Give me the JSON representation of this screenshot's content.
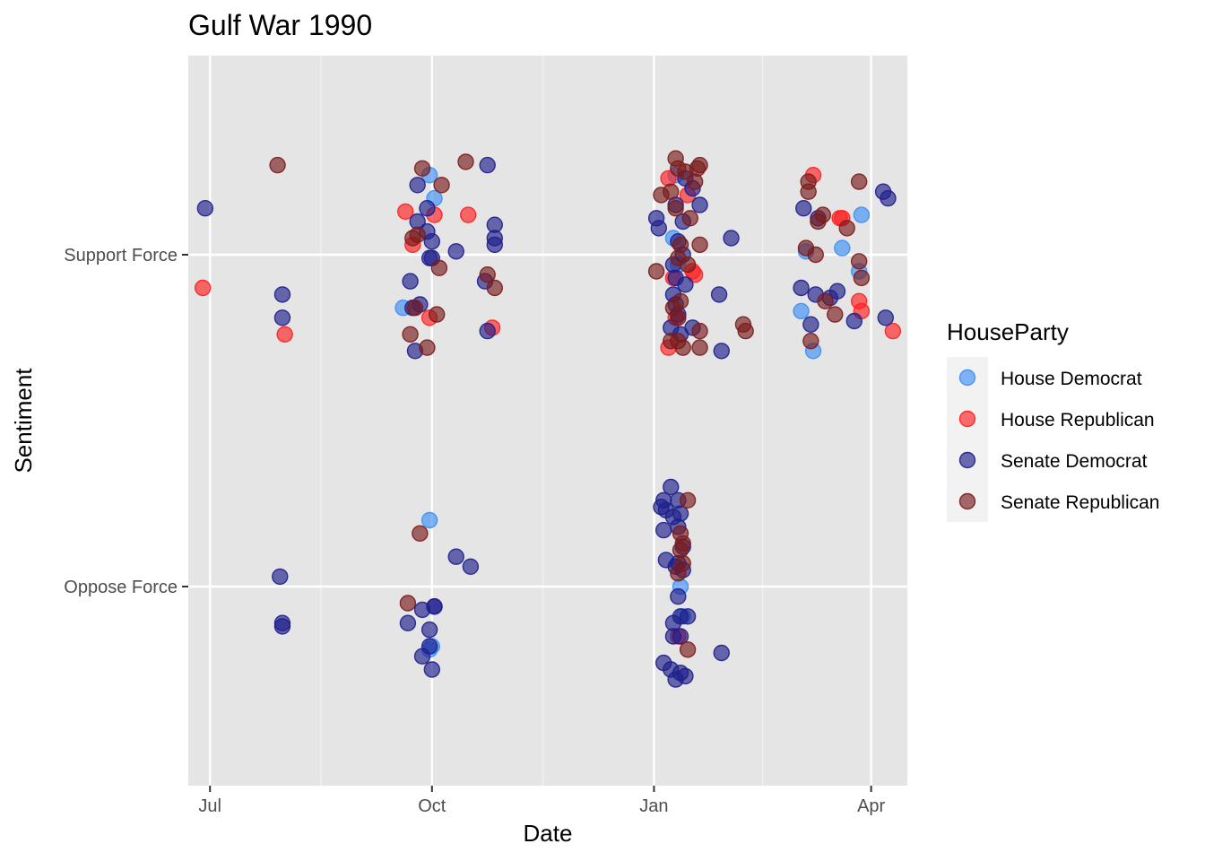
{
  "chart_data": {
    "type": "scatter",
    "title": "Gulf War 1990",
    "xlabel": "Date",
    "ylabel": "Sentiment",
    "x_type": "date",
    "xlim": [
      "1990-06-22",
      "1991-04-16"
    ],
    "x_ticks": [
      {
        "date": "1990-07-01",
        "label": "Jul"
      },
      {
        "date": "1990-10-01",
        "label": "Oct"
      },
      {
        "date": "1991-01-01",
        "label": "Jan"
      },
      {
        "date": "1991-04-01",
        "label": "Apr"
      }
    ],
    "x_minor_ticks": [
      "1990-08-16",
      "1990-11-16",
      "1991-02-15"
    ],
    "y_categories": [
      "Oppose Force",
      "Support Force"
    ],
    "ylim": [
      -0.6,
      1.6
    ],
    "grid": true,
    "legend_position": "right",
    "legend": {
      "title": "HouseParty",
      "entries": [
        {
          "label": "House Democrat",
          "color": "#3E8FF5"
        },
        {
          "label": "House Republican",
          "color": "#FF2020"
        },
        {
          "label": "Senate Democrat",
          "color": "#1E1F8C"
        },
        {
          "label": "Senate Republican",
          "color": "#7A1C1C"
        }
      ]
    },
    "series": [
      {
        "name": "House Democrat",
        "color": "#3E8FF5",
        "points": [
          [
            "1990-09-19",
            0.84
          ],
          [
            "1990-09-30",
            1.24
          ],
          [
            "1990-10-02",
            1.17
          ],
          [
            "1990-09-30",
            0.2
          ],
          [
            "1990-09-30",
            -0.19
          ],
          [
            "1990-10-01",
            -0.18
          ],
          [
            "1991-01-10",
            1.24
          ],
          [
            "1991-01-09",
            1.05
          ],
          [
            "1991-01-11",
            0.97
          ],
          [
            "1991-01-12",
            -0.0
          ],
          [
            "1991-01-13",
            -0.09
          ],
          [
            "1991-03-03",
            0.83
          ],
          [
            "1991-03-05",
            1.01
          ],
          [
            "1991-03-08",
            0.71
          ],
          [
            "1991-03-20",
            1.02
          ],
          [
            "1991-03-27",
            0.95
          ],
          [
            "1991-03-28",
            1.12
          ]
        ]
      },
      {
        "name": "House Republican",
        "color": "#FF2020",
        "points": [
          [
            "1990-06-28",
            0.9
          ],
          [
            "1990-08-01",
            0.76
          ],
          [
            "1990-09-20",
            1.13
          ],
          [
            "1990-09-23",
            1.03
          ],
          [
            "1990-09-30",
            0.81
          ],
          [
            "1990-10-02",
            1.12
          ],
          [
            "1990-10-16",
            1.12
          ],
          [
            "1990-10-26",
            0.78
          ],
          [
            "1991-01-07",
            1.23
          ],
          [
            "1991-01-09",
            0.93
          ],
          [
            "1991-01-10",
            0.81
          ],
          [
            "1991-01-07",
            0.72
          ],
          [
            "1991-01-15",
            1.18
          ],
          [
            "1991-01-18",
            0.94
          ],
          [
            "1991-01-17",
            0.95
          ],
          [
            "1991-01-11",
            -0.15
          ],
          [
            "1991-03-08",
            1.24
          ],
          [
            "1991-03-20",
            1.11
          ],
          [
            "1991-03-19",
            1.11
          ],
          [
            "1991-03-27",
            0.86
          ],
          [
            "1991-03-28",
            0.83
          ],
          [
            "1991-04-10",
            0.77
          ]
        ]
      },
      {
        "name": "Senate Democrat",
        "color": "#1E1F8C",
        "points": [
          [
            "1990-06-29",
            1.14
          ],
          [
            "1990-07-31",
            0.88
          ],
          [
            "1990-07-31",
            0.81
          ],
          [
            "1990-07-30",
            0.03
          ],
          [
            "1990-07-31",
            -0.11
          ],
          [
            "1990-07-31",
            -0.12
          ],
          [
            "1990-09-25",
            1.21
          ],
          [
            "1990-09-29",
            1.14
          ],
          [
            "1990-09-25",
            1.1
          ],
          [
            "1990-09-29",
            1.07
          ],
          [
            "1990-10-01",
            1.04
          ],
          [
            "1990-09-30",
            0.99
          ],
          [
            "1990-10-01",
            0.99
          ],
          [
            "1990-09-22",
            0.92
          ],
          [
            "1990-09-26",
            0.85
          ],
          [
            "1990-09-23",
            0.84
          ],
          [
            "1990-09-24",
            0.71
          ],
          [
            "1990-10-11",
            1.01
          ],
          [
            "1990-10-24",
            1.27
          ],
          [
            "1990-10-27",
            1.09
          ],
          [
            "1990-10-27",
            1.05
          ],
          [
            "1990-10-27",
            1.03
          ],
          [
            "1990-10-23",
            0.92
          ],
          [
            "1990-10-24",
            0.77
          ],
          [
            "1990-10-11",
            0.09
          ],
          [
            "1990-10-17",
            0.06
          ],
          [
            "1990-09-27",
            -0.07
          ],
          [
            "1990-10-02",
            -0.06
          ],
          [
            "1990-10-02",
            -0.06
          ],
          [
            "1990-09-21",
            -0.11
          ],
          [
            "1990-09-30",
            -0.13
          ],
          [
            "1990-09-30",
            -0.18
          ],
          [
            "1990-09-27",
            -0.21
          ],
          [
            "1990-10-01",
            -0.25
          ],
          [
            "1991-01-02",
            1.11
          ],
          [
            "1991-01-03",
            1.08
          ],
          [
            "1991-01-10",
            1.15
          ],
          [
            "1991-01-13",
            1.1
          ],
          [
            "1991-01-14",
            1.23
          ],
          [
            "1991-01-17",
            1.2
          ],
          [
            "1991-01-20",
            1.15
          ],
          [
            "1991-01-11",
            1.04
          ],
          [
            "1991-01-13",
            1.0
          ],
          [
            "1991-01-09",
            0.97
          ],
          [
            "1991-01-10",
            0.93
          ],
          [
            "1991-01-14",
            0.91
          ],
          [
            "1991-01-09",
            0.88
          ],
          [
            "1991-01-10",
            0.85
          ],
          [
            "1991-01-11",
            0.82
          ],
          [
            "1991-01-08",
            0.78
          ],
          [
            "1991-01-12",
            0.76
          ],
          [
            "1991-01-17",
            0.78
          ],
          [
            "1991-01-29",
            0.71
          ],
          [
            "1991-01-28",
            0.88
          ],
          [
            "1991-02-02",
            1.05
          ],
          [
            "1991-03-04",
            1.14
          ],
          [
            "1991-03-10",
            1.11
          ],
          [
            "1991-03-03",
            0.9
          ],
          [
            "1991-03-09",
            0.88
          ],
          [
            "1991-03-15",
            0.87
          ],
          [
            "1991-03-18",
            0.89
          ],
          [
            "1991-03-07",
            0.79
          ],
          [
            "1991-03-25",
            0.8
          ],
          [
            "1991-04-06",
            1.19
          ],
          [
            "1991-04-08",
            1.17
          ],
          [
            "1991-04-07",
            0.81
          ],
          [
            "1991-01-08",
            0.3
          ],
          [
            "1991-01-05",
            0.26
          ],
          [
            "1991-01-06",
            0.23
          ],
          [
            "1991-01-11",
            0.26
          ],
          [
            "1991-01-04",
            0.24
          ],
          [
            "1991-01-09",
            0.21
          ],
          [
            "1991-01-12",
            0.22
          ],
          [
            "1991-01-05",
            0.17
          ],
          [
            "1991-01-11",
            0.18
          ],
          [
            "1991-01-13",
            0.12
          ],
          [
            "1991-01-06",
            0.08
          ],
          [
            "1991-01-10",
            0.06
          ],
          [
            "1991-01-11",
            0.07
          ],
          [
            "1991-01-13",
            0.05
          ],
          [
            "1991-01-11",
            -0.03
          ],
          [
            "1991-01-09",
            -0.11
          ],
          [
            "1991-01-12",
            -0.09
          ],
          [
            "1991-01-15",
            -0.09
          ],
          [
            "1991-01-09",
            -0.15
          ],
          [
            "1991-01-12",
            -0.15
          ],
          [
            "1991-01-05",
            -0.23
          ],
          [
            "1991-01-08",
            -0.25
          ],
          [
            "1991-01-12",
            -0.26
          ],
          [
            "1991-01-10",
            -0.28
          ],
          [
            "1991-01-14",
            -0.27
          ],
          [
            "1991-01-29",
            -0.2
          ]
        ]
      },
      {
        "name": "Senate Republican",
        "color": "#7A1C1C",
        "points": [
          [
            "1990-07-29",
            1.27
          ],
          [
            "1990-09-27",
            1.26
          ],
          [
            "1990-10-05",
            1.21
          ],
          [
            "1990-10-15",
            1.28
          ],
          [
            "1990-09-23",
            1.05
          ],
          [
            "1990-09-25",
            1.06
          ],
          [
            "1990-10-04",
            0.96
          ],
          [
            "1990-09-24",
            0.84
          ],
          [
            "1990-10-03",
            0.82
          ],
          [
            "1990-09-22",
            0.76
          ],
          [
            "1990-09-29",
            0.72
          ],
          [
            "1990-10-24",
            0.94
          ],
          [
            "1990-10-27",
            0.9
          ],
          [
            "1990-09-26",
            0.16
          ],
          [
            "1990-09-21",
            -0.05
          ],
          [
            "1991-01-10",
            1.29
          ],
          [
            "1991-01-11",
            1.26
          ],
          [
            "1991-01-14",
            1.25
          ],
          [
            "1991-01-19",
            1.26
          ],
          [
            "1991-01-20",
            1.27
          ],
          [
            "1991-01-08",
            1.19
          ],
          [
            "1991-01-18",
            1.22
          ],
          [
            "1991-01-04",
            1.18
          ],
          [
            "1991-01-10",
            1.14
          ],
          [
            "1991-01-16",
            1.11
          ],
          [
            "1991-01-12",
            1.03
          ],
          [
            "1991-01-20",
            1.03
          ],
          [
            "1991-01-11",
            0.99
          ],
          [
            "1991-01-02",
            0.95
          ],
          [
            "1991-01-15",
            0.97
          ],
          [
            "1991-01-12",
            0.86
          ],
          [
            "1991-01-09",
            0.84
          ],
          [
            "1991-01-11",
            0.81
          ],
          [
            "1991-01-20",
            0.77
          ],
          [
            "1991-02-07",
            0.79
          ],
          [
            "1991-02-08",
            0.77
          ],
          [
            "1991-01-08",
            0.74
          ],
          [
            "1991-01-11",
            0.74
          ],
          [
            "1991-01-13",
            0.72
          ],
          [
            "1991-01-20",
            0.72
          ],
          [
            "1991-03-06",
            1.22
          ],
          [
            "1991-03-06",
            1.19
          ],
          [
            "1991-03-12",
            1.12
          ],
          [
            "1991-03-10",
            1.1
          ],
          [
            "1991-03-22",
            1.08
          ],
          [
            "1991-03-27",
            1.22
          ],
          [
            "1991-03-05",
            1.02
          ],
          [
            "1991-03-09",
            1.0
          ],
          [
            "1991-03-27",
            0.98
          ],
          [
            "1991-03-28",
            0.93
          ],
          [
            "1991-03-17",
            0.82
          ],
          [
            "1991-03-13",
            0.86
          ],
          [
            "1991-03-07",
            0.74
          ],
          [
            "1991-01-12",
            0.16
          ],
          [
            "1991-01-13",
            0.13
          ],
          [
            "1991-01-12",
            0.11
          ],
          [
            "1991-01-15",
            0.26
          ],
          [
            "1991-01-11",
            0.04
          ],
          [
            "1991-01-13",
            0.07
          ],
          [
            "1991-01-15",
            -0.19
          ]
        ]
      }
    ]
  }
}
